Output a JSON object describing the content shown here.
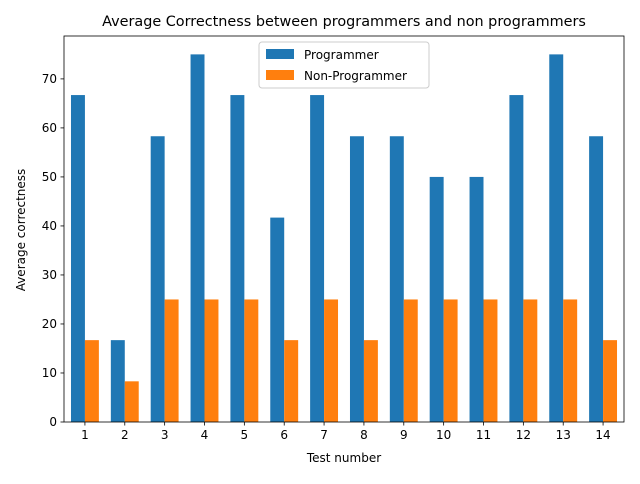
{
  "chart_data": {
    "type": "bar",
    "title": "Average Correctness between programmers and non programmers",
    "xlabel": "Test number",
    "ylabel": "Average correctness",
    "categories": [
      "1",
      "2",
      "3",
      "4",
      "5",
      "6",
      "7",
      "8",
      "9",
      "10",
      "11",
      "12",
      "13",
      "14"
    ],
    "series": [
      {
        "name": "Programmer",
        "color": "#1f77b4",
        "values": [
          66.7,
          16.7,
          58.3,
          75.0,
          66.7,
          41.7,
          66.7,
          58.3,
          58.3,
          50.0,
          50.0,
          66.7,
          75.0,
          58.3
        ]
      },
      {
        "name": "Non-Programmer",
        "color": "#ff7f0e",
        "values": [
          16.7,
          8.3,
          25.0,
          25.0,
          25.0,
          16.7,
          25.0,
          16.7,
          25.0,
          25.0,
          25.0,
          25.0,
          25.0,
          16.7
        ]
      }
    ],
    "yticks": [
      0,
      10,
      20,
      30,
      40,
      50,
      60,
      70
    ],
    "ylim": [
      0,
      78.75
    ],
    "grid": false,
    "legend_position": "top-center"
  }
}
